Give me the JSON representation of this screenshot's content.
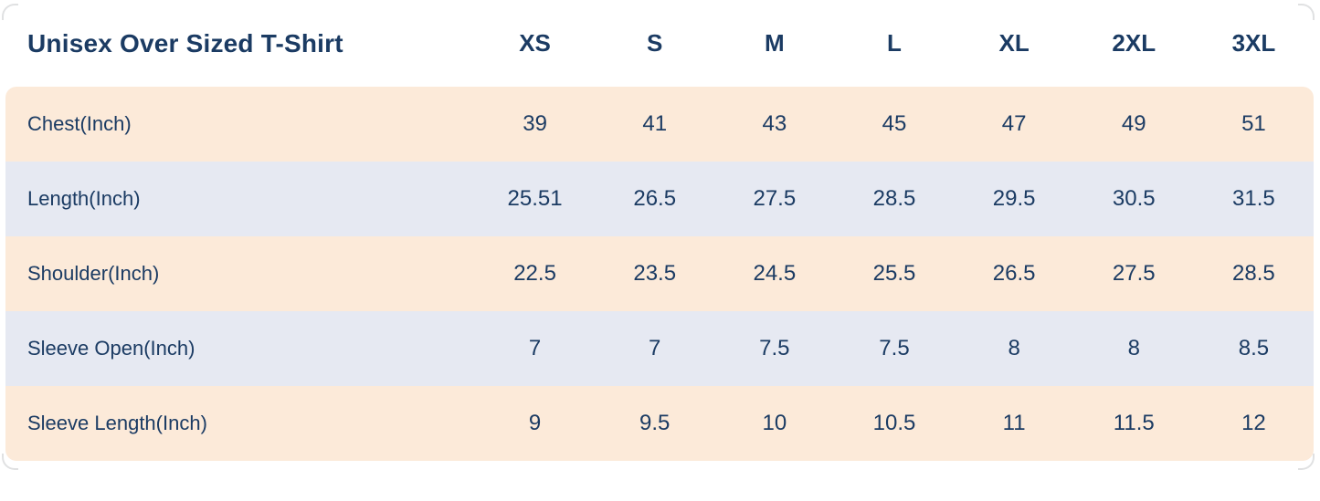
{
  "chart_data": {
    "type": "table",
    "title": "Unisex Over Sized T-Shirt",
    "columns": [
      "XS",
      "S",
      "M",
      "L",
      "XL",
      "2XL",
      "3XL"
    ],
    "rows": [
      {
        "label": "Chest(Inch)",
        "values": [
          "39",
          "41",
          "43",
          "45",
          "47",
          "49",
          "51"
        ]
      },
      {
        "label": "Length(Inch)",
        "values": [
          "25.51",
          "26.5",
          "27.5",
          "28.5",
          "29.5",
          "30.5",
          "31.5"
        ]
      },
      {
        "label": "Shoulder(Inch)",
        "values": [
          "22.5",
          "23.5",
          "24.5",
          "25.5",
          "26.5",
          "27.5",
          "28.5"
        ]
      },
      {
        "label": "Sleeve Open(Inch)",
        "values": [
          "7",
          "7",
          "7.5",
          "7.5",
          "8",
          "8",
          "8.5"
        ]
      },
      {
        "label": "Sleeve Length(Inch)",
        "values": [
          "9",
          "9.5",
          "10",
          "10.5",
          "11",
          "11.5",
          "12"
        ]
      }
    ],
    "layout": {
      "header_row": "top",
      "label_column": "left",
      "alternating_row_colors": true,
      "grid": false
    }
  },
  "colors": {
    "text": "#1b3b63",
    "row_peach": "#fcead9",
    "row_blue": "#e6e9f2",
    "background": "#ffffff",
    "corner_mark": "#d9dadc"
  }
}
